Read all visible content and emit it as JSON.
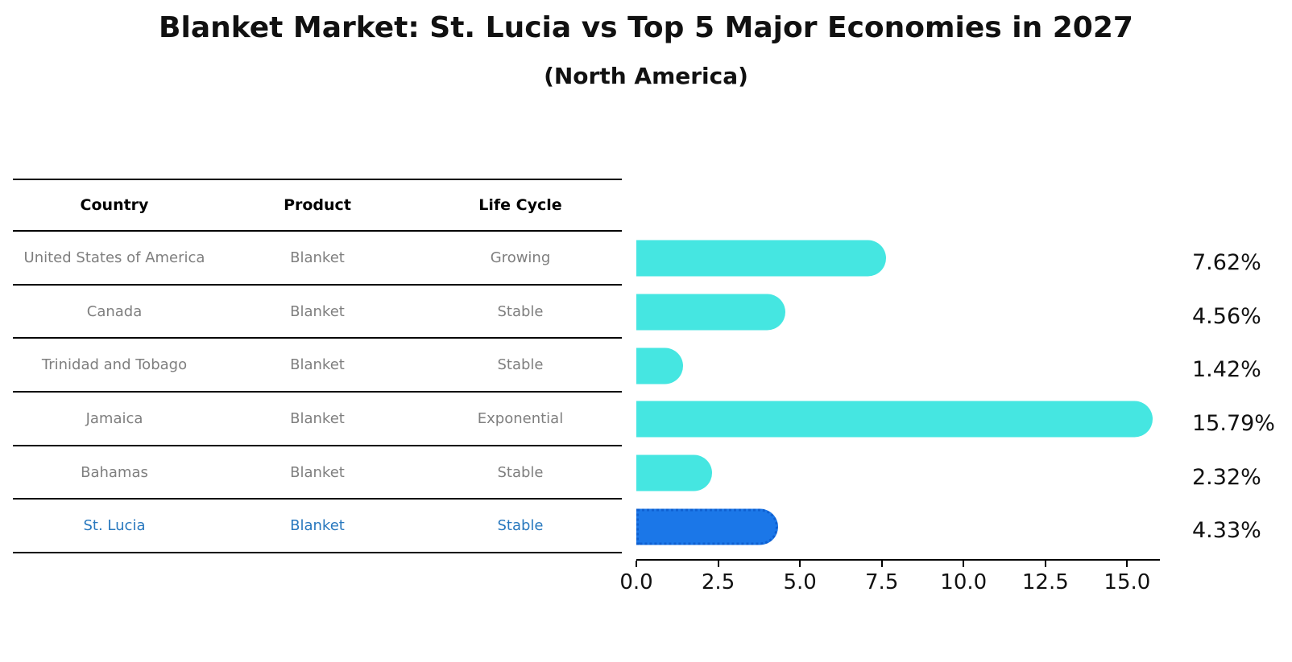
{
  "title": "Blanket Market: St. Lucia vs Top 5 Major Economies in 2027",
  "subtitle": "(North America)",
  "table": {
    "headers": [
      "Country",
      "Product",
      "Life Cycle"
    ],
    "rows": [
      {
        "country": "United States of America",
        "product": "Blanket",
        "life_cycle": "Growing"
      },
      {
        "country": "Canada",
        "product": "Blanket",
        "life_cycle": "Stable"
      },
      {
        "country": "Trinidad and Tobago",
        "product": "Blanket",
        "life_cycle": "Stable"
      },
      {
        "country": "Jamaica",
        "product": "Blanket",
        "life_cycle": "Exponential"
      },
      {
        "country": "Bahamas",
        "product": "Blanket",
        "life_cycle": "Stable"
      },
      {
        "country": "St. Lucia",
        "product": "Blanket",
        "life_cycle": "Stable"
      }
    ]
  },
  "chart_data": {
    "type": "bar",
    "orientation": "horizontal",
    "title": "Blanket Market: St. Lucia vs Top 5 Major Economies in 2027",
    "subtitle": "(North America)",
    "categories": [
      "United States of America",
      "Canada",
      "Trinidad and Tobago",
      "Jamaica",
      "Bahamas",
      "St. Lucia"
    ],
    "values": [
      7.62,
      4.56,
      1.42,
      15.79,
      2.32,
      4.33
    ],
    "value_labels": [
      "7.62%",
      "4.56%",
      "1.42%",
      "15.79%",
      "2.32%",
      "4.33%"
    ],
    "xlabel": "",
    "ylabel": "",
    "xlim": [
      0,
      16
    ],
    "xticks": [
      0.0,
      2.5,
      5.0,
      7.5,
      10.0,
      12.5,
      15.0
    ],
    "xtick_labels": [
      "0.0",
      "2.5",
      "5.0",
      "7.5",
      "10.0",
      "12.5",
      "15.0"
    ],
    "grid": false,
    "legend": false,
    "highlight_index": 5,
    "colors": {
      "bar": "#45e6e1",
      "highlight_bar": "#1b77e8",
      "highlight_border": "#0e5fd0",
      "highlight_text": "#2878be",
      "row_text": "#7f7f7f",
      "axis": "#000000"
    }
  }
}
